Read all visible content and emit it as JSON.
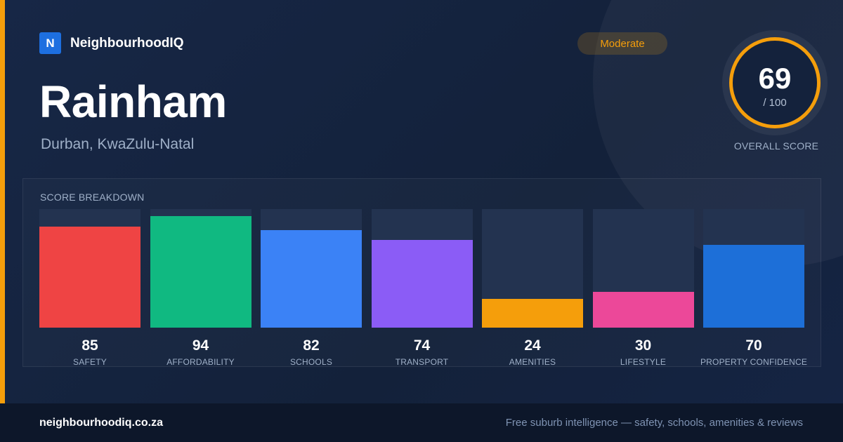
{
  "brand": {
    "logo_letter": "N",
    "name": "NeighbourhoodIQ"
  },
  "suburb": {
    "name": "Rainham",
    "location": "Durban, KwaZulu-Natal"
  },
  "rating": {
    "label": "Moderate",
    "color": "#f59e0b"
  },
  "overall": {
    "score": "69",
    "max": "/ 100",
    "label": "OVERALL SCORE",
    "fraction": 0.69
  },
  "breakdown": {
    "title": "SCORE BREAKDOWN",
    "max": 100,
    "items": [
      {
        "label": "SAFETY",
        "value": 85,
        "color": "#ef4444"
      },
      {
        "label": "AFFORDABILITY",
        "value": 94,
        "color": "#10b981"
      },
      {
        "label": "SCHOOLS",
        "value": 82,
        "color": "#3b82f6"
      },
      {
        "label": "TRANSPORT",
        "value": 74,
        "color": "#8b5cf6"
      },
      {
        "label": "AMENITIES",
        "value": 24,
        "color": "#f59e0b"
      },
      {
        "label": "LIFESTYLE",
        "value": 30,
        "color": "#ec4899"
      },
      {
        "label": "PROPERTY CONFIDENCE",
        "value": 70,
        "color": "#1d6fd8"
      }
    ]
  },
  "footer": {
    "domain": "neighbourhoodiq.co.za",
    "tagline": "Free suburb intelligence — safety, schools, amenities & reviews"
  }
}
